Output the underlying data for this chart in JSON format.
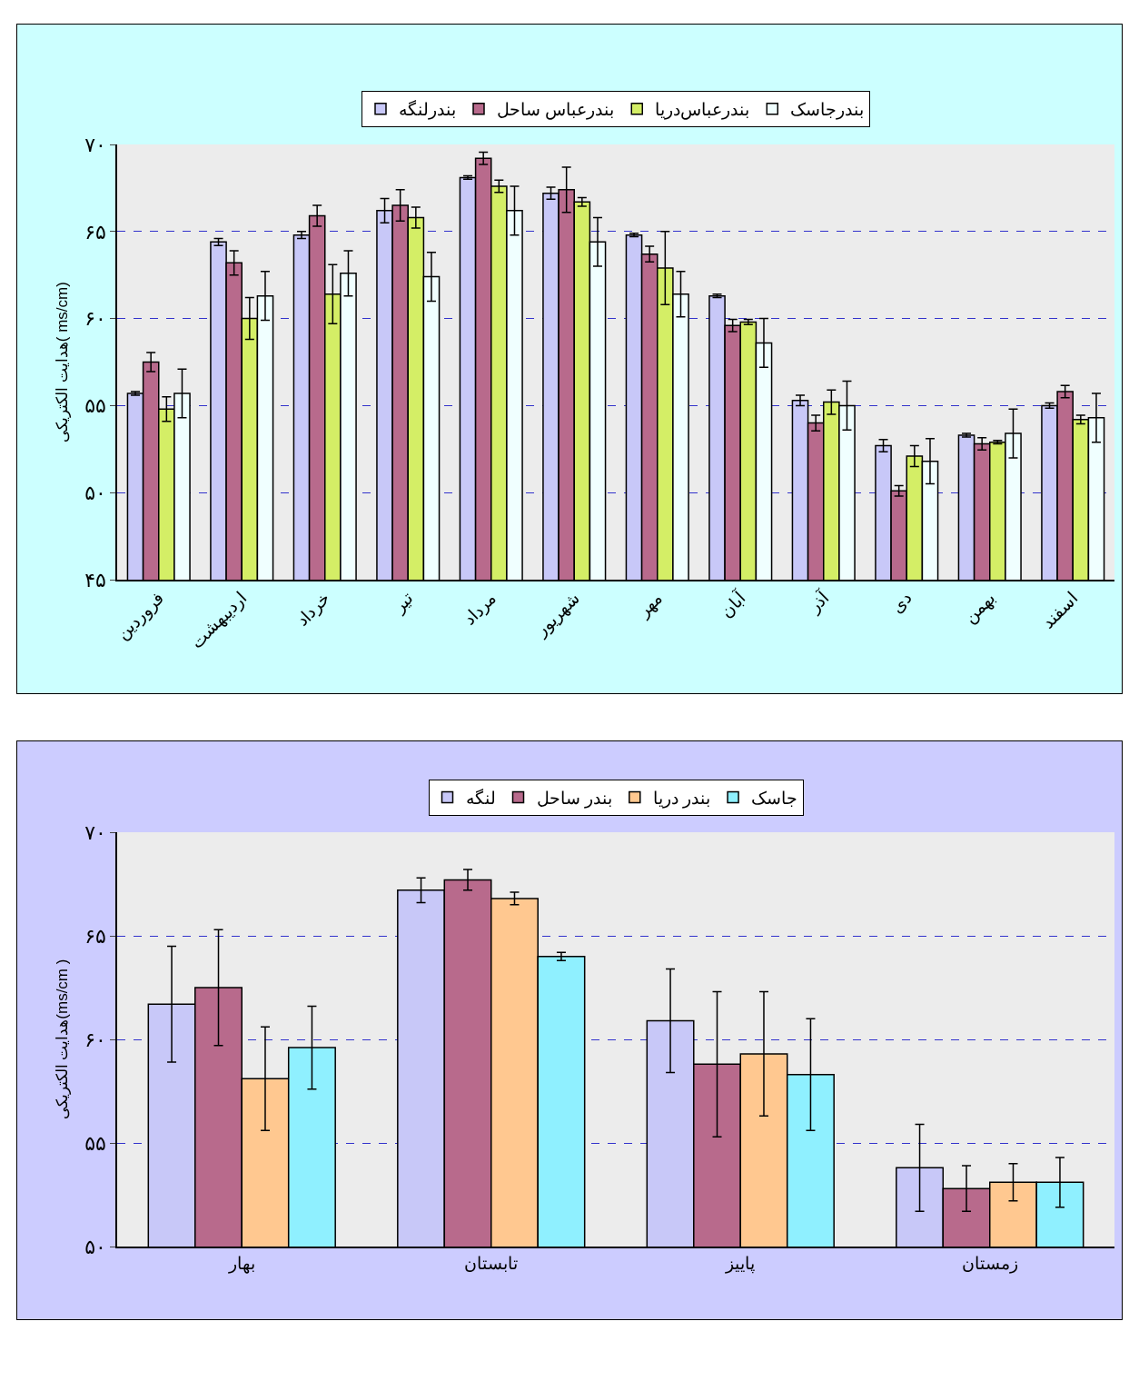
{
  "chart_data": [
    {
      "type": "bar",
      "ylabel": "هدایت الکتریکی( ms/cm)",
      "categories": [
        "فروردین",
        "اردیبهشت",
        "خرداد",
        "تیر",
        "مرداد",
        "شهریور",
        "مهر",
        "آبان",
        "آذر",
        "دی",
        "بهمن",
        "اسفند"
      ],
      "series": [
        {
          "name": "بندرلنگه",
          "color": "#c8c8f8",
          "values": [
            55.7,
            64.4,
            64.8,
            66.2,
            68.1,
            67.2,
            64.8,
            61.3,
            55.3,
            52.7,
            53.3,
            55.0
          ],
          "errors": [
            0.1,
            0.2,
            0.2,
            0.7,
            0.1,
            0.35,
            0.1,
            0.1,
            0.3,
            0.35,
            0.1,
            0.15
          ]
        },
        {
          "name": "بندرعباس ساحل",
          "color": "#b86a8c",
          "values": [
            57.5,
            63.2,
            65.9,
            66.5,
            69.2,
            67.4,
            63.7,
            59.6,
            54.0,
            50.1,
            52.8,
            55.8
          ],
          "errors": [
            0.55,
            0.7,
            0.6,
            0.9,
            0.35,
            1.3,
            0.45,
            0.35,
            0.45,
            0.3,
            0.35,
            0.35
          ]
        },
        {
          "name": "بندرعباس‌دریا",
          "color": "#d4ee66",
          "values": [
            54.8,
            60.0,
            61.4,
            65.8,
            67.6,
            66.7,
            62.9,
            59.8,
            55.2,
            52.1,
            52.9,
            54.2
          ],
          "errors": [
            0.7,
            1.2,
            1.7,
            0.6,
            0.35,
            0.25,
            2.1,
            0.15,
            0.7,
            0.6,
            0.1,
            0.25
          ]
        },
        {
          "name": "بندرجاسک",
          "color": "#f0ffff",
          "values": [
            55.7,
            61.3,
            62.6,
            62.4,
            66.2,
            64.4,
            61.4,
            58.6,
            55.0,
            51.8,
            53.4,
            54.3
          ],
          "errors": [
            1.4,
            1.4,
            1.3,
            1.4,
            1.4,
            1.4,
            1.3,
            1.4,
            1.4,
            1.3,
            1.4,
            1.4
          ]
        }
      ],
      "ylim": [
        45,
        70
      ],
      "yticks": [
        {
          "value": 45,
          "label": "۴۵"
        },
        {
          "value": 50,
          "label": "۵۰"
        },
        {
          "value": 55,
          "label": "۵۵"
        },
        {
          "value": 60,
          "label": "۶۰"
        },
        {
          "value": 65,
          "label": "۶۵"
        },
        {
          "value": 70,
          "label": "۷۰"
        }
      ],
      "grid": "y",
      "legend": "top"
    },
    {
      "type": "bar",
      "ylabel": "هدایت الکتریکی(ms/cm )",
      "categories": [
        "بهار",
        "تابستان",
        "پاییز",
        "زمستان"
      ],
      "series": [
        {
          "name": "لنگه",
          "color": "#c8c8f8",
          "values": [
            61.7,
            67.2,
            60.9,
            53.8
          ],
          "errors": [
            2.8,
            0.6,
            2.5,
            2.1
          ]
        },
        {
          "name": "بندر ساحل",
          "color": "#b86a8c",
          "values": [
            62.5,
            67.7,
            58.8,
            52.8
          ],
          "errors": [
            2.8,
            0.5,
            3.5,
            1.1
          ]
        },
        {
          "name": "بندر دریا",
          "color": "#ffc890",
          "values": [
            58.1,
            66.8,
            59.3,
            53.1
          ],
          "errors": [
            2.5,
            0.3,
            3.0,
            0.9
          ]
        },
        {
          "name": "جاسک",
          "color": "#8ff0ff",
          "values": [
            59.6,
            64.0,
            58.3,
            53.1
          ],
          "errors": [
            2.0,
            0.2,
            2.7,
            1.2
          ]
        }
      ],
      "ylim": [
        50,
        70
      ],
      "yticks": [
        {
          "value": 50,
          "label": "۵۰"
        },
        {
          "value": 55,
          "label": "۵۵"
        },
        {
          "value": 60,
          "label": "۶۰"
        },
        {
          "value": 65,
          "label": "۶۵"
        },
        {
          "value": 70,
          "label": "۷۰"
        }
      ],
      "grid": "y",
      "legend": "top"
    }
  ]
}
